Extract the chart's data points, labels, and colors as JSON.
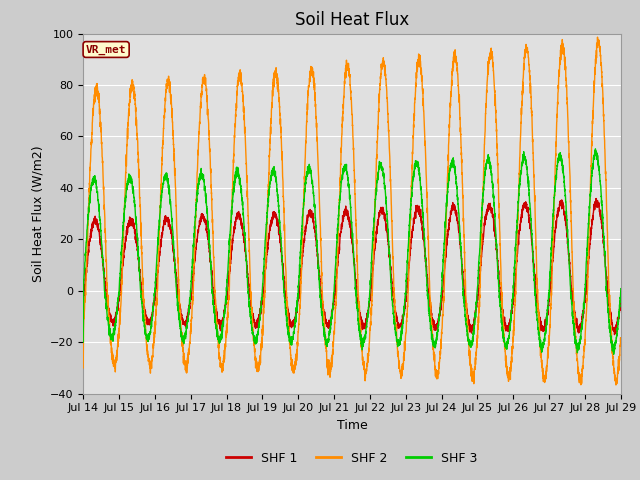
{
  "title": "Soil Heat Flux",
  "ylabel": "Soil Heat Flux (W/m2)",
  "xlabel": "Time",
  "ylim": [
    -40,
    100
  ],
  "yticks": [
    -40,
    -20,
    0,
    20,
    40,
    60,
    80,
    100
  ],
  "x_tick_labels": [
    "Jul 14",
    "Jul 15",
    "Jul 16",
    "Jul 17",
    "Jul 18",
    "Jul 19",
    "Jul 20",
    "Jul 21",
    "Jul 22",
    "Jul 23",
    "Jul 24",
    "Jul 25",
    "Jul 26",
    "Jul 27",
    "Jul 28",
    "Jul 29"
  ],
  "color_shf1": "#cc0000",
  "color_shf2": "#ff8c00",
  "color_shf3": "#00cc00",
  "legend_labels": [
    "SHF 1",
    "SHF 2",
    "SHF 3"
  ],
  "annotation_text": "VR_met",
  "annotation_color": "#8b0000",
  "background_color": "#cccccc",
  "plot_bg_color": "#e0e0e0",
  "grid_color": "#ffffff",
  "title_fontsize": 12,
  "label_fontsize": 9,
  "tick_fontsize": 8,
  "n_days": 15,
  "points_per_day": 288
}
